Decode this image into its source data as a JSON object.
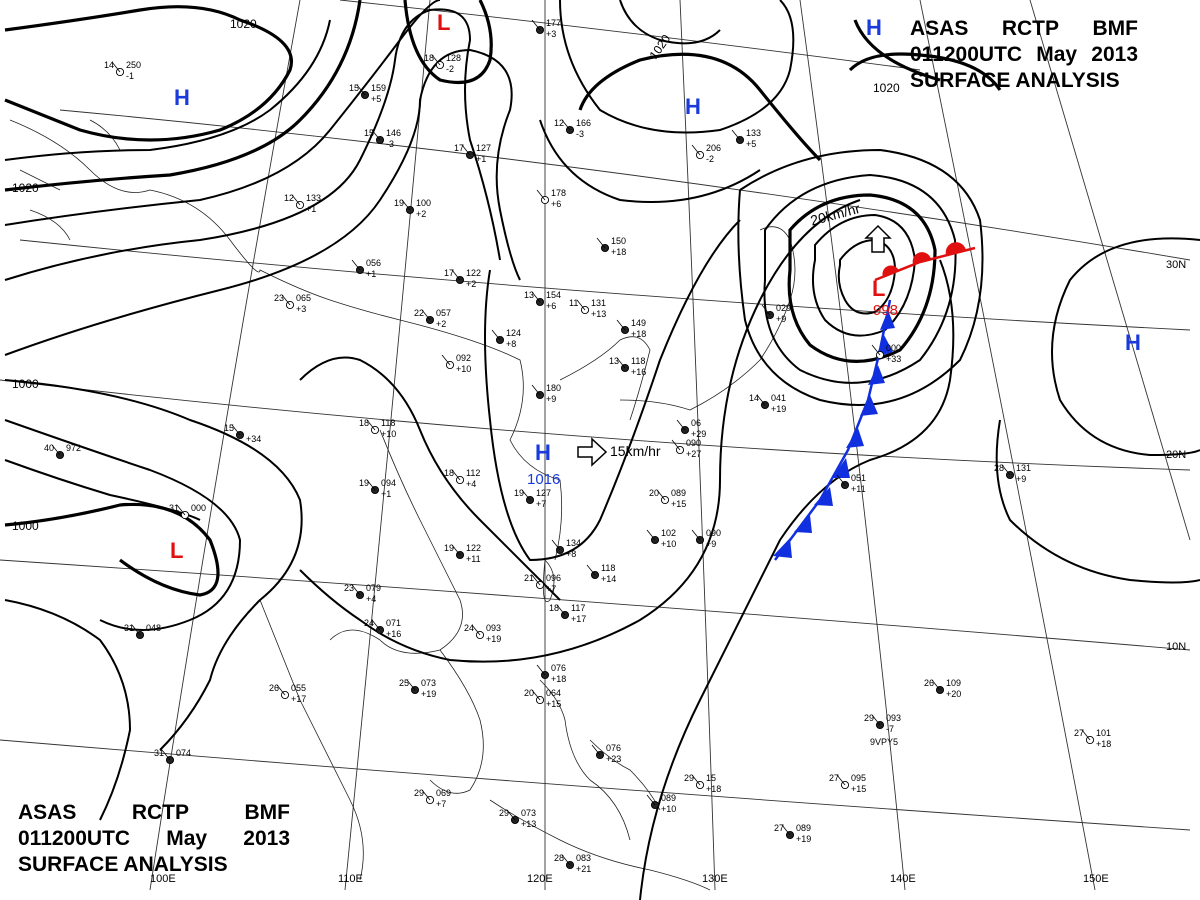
{
  "title": {
    "line1": [
      "ASAS",
      "RCTP",
      "BMF"
    ],
    "line2": [
      "011200UTC",
      "May",
      "2013"
    ],
    "line3": "SURFACE  ANALYSIS"
  },
  "colors": {
    "high": "#1a3adb",
    "low": "#e01010",
    "cold_front": "#1030e0",
    "warm_front": "#e01010",
    "isobar": "#000000",
    "grid": "#333333"
  },
  "longitude_labels": [
    "100E",
    "110E",
    "120E",
    "130E",
    "140E",
    "150E"
  ],
  "latitude_labels": [
    "30N",
    "20N",
    "10N"
  ],
  "isobar_labels": [
    "1020",
    "1020",
    "1020",
    "1020",
    "1000",
    "1000"
  ],
  "pressure_centers": [
    {
      "type": "H",
      "value": ""
    },
    {
      "type": "H",
      "value": ""
    },
    {
      "type": "H",
      "value": ""
    },
    {
      "type": "H",
      "value": "1016"
    },
    {
      "type": "H",
      "value": ""
    },
    {
      "type": "L",
      "value": ""
    },
    {
      "type": "L",
      "value": "998"
    },
    {
      "type": "L",
      "value": ""
    }
  ],
  "motion_labels": [
    "15km/hr",
    "20km/hr"
  ],
  "station_plots": [
    {
      "t": "14",
      "p": "250",
      "d": "-1"
    },
    {
      "t": "15",
      "p": "159",
      "d": "+5"
    },
    {
      "t": "15",
      "p": "146",
      "d": "-3"
    },
    {
      "t": "18",
      "p": "128",
      "d": "-2"
    },
    {
      "t": "",
      "p": "177",
      "d": "+3"
    },
    {
      "t": "12",
      "p": "166",
      "d": "-3"
    },
    {
      "t": "",
      "p": "206",
      "d": "-2"
    },
    {
      "t": "",
      "p": "133",
      "d": "+5"
    },
    {
      "t": "17",
      "p": "127",
      "d": "+1"
    },
    {
      "t": "",
      "p": "178",
      "d": "+6"
    },
    {
      "t": "",
      "p": "150",
      "d": "+18"
    },
    {
      "t": "19",
      "p": "100",
      "d": "+2"
    },
    {
      "t": "12",
      "p": "133",
      "d": "+1"
    },
    {
      "t": "",
      "p": "056",
      "d": "+1"
    },
    {
      "t": "17",
      "p": "122",
      "d": "+2"
    },
    {
      "t": "23",
      "p": "065",
      "d": "+3"
    },
    {
      "t": "22",
      "p": "057",
      "d": "+2"
    },
    {
      "t": "13",
      "p": "154",
      "d": "+6"
    },
    {
      "t": "11",
      "p": "131",
      "d": "+13"
    },
    {
      "t": "",
      "p": "149",
      "d": "+18"
    },
    {
      "t": "",
      "p": "124",
      "d": "+8"
    },
    {
      "t": "",
      "p": "092",
      "d": "+10"
    },
    {
      "t": "",
      "p": "180",
      "d": "+9"
    },
    {
      "t": "13",
      "p": "118",
      "d": "+16"
    },
    {
      "t": "18",
      "p": "118",
      "d": "+10"
    },
    {
      "t": "15",
      "p": "",
      "d": "+34"
    },
    {
      "t": "40",
      "p": "972",
      "d": ""
    },
    {
      "t": "18",
      "p": "112",
      "d": "+4"
    },
    {
      "t": "19",
      "p": "094",
      "d": "+1"
    },
    {
      "t": "19",
      "p": "127",
      "d": "+7"
    },
    {
      "t": "31",
      "p": "000",
      "d": ""
    },
    {
      "t": "19",
      "p": "122",
      "d": "+11"
    },
    {
      "t": "",
      "p": "134",
      "d": "+8"
    },
    {
      "t": "20",
      "p": "089",
      "d": "+15"
    },
    {
      "t": "",
      "p": "102",
      "d": "+10"
    },
    {
      "t": "",
      "p": "118",
      "d": "+14"
    },
    {
      "t": "21",
      "p": "096",
      "d": "+7"
    },
    {
      "t": "23",
      "p": "079",
      "d": "+4"
    },
    {
      "t": "24",
      "p": "071",
      "d": "+16"
    },
    {
      "t": "24",
      "p": "093",
      "d": "+19"
    },
    {
      "t": "18",
      "p": "117",
      "d": "+17"
    },
    {
      "t": "31",
      "p": "048",
      "d": ""
    },
    {
      "t": "26",
      "p": "055",
      "d": "+17"
    },
    {
      "t": "25",
      "p": "073",
      "d": "+19"
    },
    {
      "t": "",
      "p": "076",
      "d": "+18"
    },
    {
      "t": "20",
      "p": "064",
      "d": "+15"
    },
    {
      "t": "",
      "p": "076",
      "d": "+23"
    },
    {
      "t": "31",
      "p": "074",
      "d": ""
    },
    {
      "t": "29",
      "p": "069",
      "d": "+7"
    },
    {
      "t": "29",
      "p": "073",
      "d": "+13"
    },
    {
      "t": "",
      "p": "089",
      "d": "+10"
    },
    {
      "t": "29",
      "p": "15",
      "d": "+18"
    },
    {
      "t": "28",
      "p": "083",
      "d": "+21"
    },
    {
      "t": "27",
      "p": "089",
      "d": "+19"
    },
    {
      "t": "27",
      "p": "095",
      "d": "+15"
    },
    {
      "t": "29",
      "p": "093",
      "d": "-7"
    },
    {
      "t": "26",
      "p": "109",
      "d": "+20"
    },
    {
      "t": "27",
      "p": "101",
      "d": "+18"
    },
    {
      "t": "28",
      "p": "131",
      "d": "+9"
    },
    {
      "t": "",
      "p": "051",
      "d": "+11"
    },
    {
      "t": "",
      "p": "090",
      "d": "+27"
    },
    {
      "t": "14",
      "p": "041",
      "d": "+19"
    },
    {
      "t": "",
      "p": "029",
      "d": "+9"
    },
    {
      "t": "",
      "p": "000",
      "d": "+33"
    },
    {
      "t": "",
      "p": "090",
      "d": "+9"
    },
    {
      "t": "",
      "p": "06",
      "d": "+29"
    }
  ],
  "ship_callsign": "9VPY5"
}
